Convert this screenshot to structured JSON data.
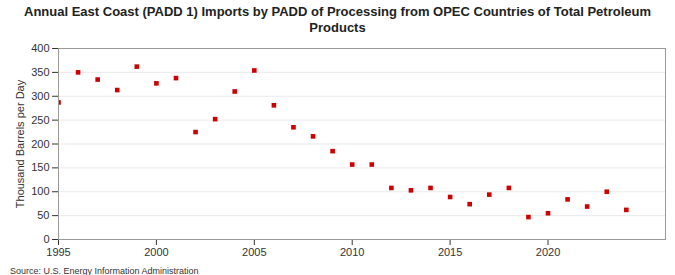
{
  "chart_data": {
    "type": "scatter",
    "title": "Annual East Coast (PADD 1) Imports by PADD of Processing from OPEC Countries of Total Petroleum Products",
    "y_label": "Thousand Barrels per Day",
    "caption": "Source: U.S. Energy Information Administration",
    "x": [
      1995,
      1996,
      1997,
      1998,
      1999,
      2000,
      2001,
      2002,
      2003,
      2004,
      2005,
      2006,
      2007,
      2008,
      2009,
      2010,
      2011,
      2012,
      2013,
      2014,
      2015,
      2016,
      2017,
      2018,
      2019,
      2020,
      2021,
      2022,
      2023,
      2024
    ],
    "values": [
      287,
      350,
      335,
      313,
      362,
      327,
      338,
      225,
      252,
      310,
      354,
      281,
      235,
      216,
      185,
      157,
      157,
      108,
      103,
      108,
      89,
      74,
      94,
      108,
      47,
      55,
      84,
      69,
      100,
      62
    ],
    "color": "#cc0000",
    "marker": "square",
    "xlim": [
      1995,
      2026
    ],
    "xticks": [
      1995,
      2000,
      2005,
      2010,
      2015,
      2020
    ],
    "ylim": [
      0,
      400
    ],
    "yticks": [
      0,
      50,
      100,
      150,
      200,
      250,
      300,
      350,
      400
    ],
    "grid": true
  }
}
